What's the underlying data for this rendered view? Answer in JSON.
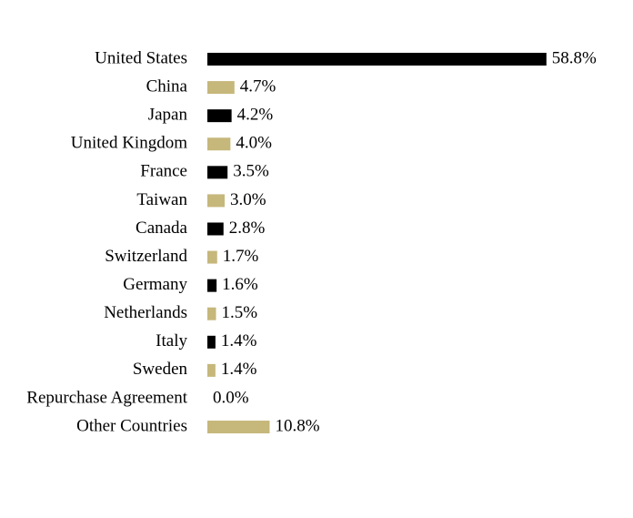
{
  "chart_data": {
    "type": "hbar",
    "categories": [
      "United States",
      "China",
      "Japan",
      "United Kingdom",
      "France",
      "Taiwan",
      "Canada",
      "Switzerland",
      "Germany",
      "Netherlands",
      "Italy",
      "Sweden",
      "Repurchase Agreement",
      "Other Countries"
    ],
    "values": [
      58.8,
      4.7,
      4.2,
      4.0,
      3.5,
      3.0,
      2.8,
      1.7,
      1.6,
      1.5,
      1.4,
      1.4,
      0.0,
      10.8
    ],
    "value_labels": [
      "58.8%",
      "4.7%",
      "4.2%",
      "4.0%",
      "3.5%",
      "3.0%",
      "2.8%",
      "1.7%",
      "1.6%",
      "1.5%",
      "1.4%",
      "1.4%",
      "0.0%",
      "10.8%"
    ],
    "colors": [
      "#000000",
      "#c6b77b",
      "#000000",
      "#c6b77b",
      "#000000",
      "#c6b77b",
      "#000000",
      "#c6b77b",
      "#000000",
      "#c6b77b",
      "#000000",
      "#c6b77b",
      "#000000",
      "#c6b77b"
    ]
  }
}
